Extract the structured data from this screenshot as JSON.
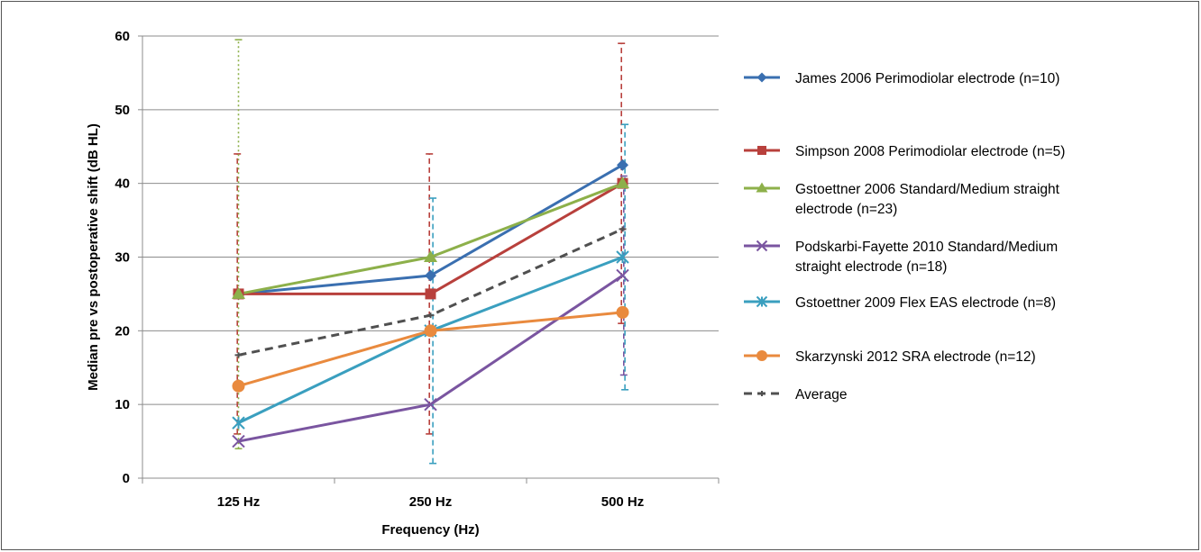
{
  "chart_data": {
    "type": "line",
    "xlabel": "Frequency (Hz)",
    "ylabel": "Median pre vs postoperative shift (dB HL)",
    "categories": [
      "125 Hz",
      "250 Hz",
      "500 Hz"
    ],
    "ylim": [
      0,
      60
    ],
    "yticks": [
      0,
      10,
      20,
      30,
      40,
      50,
      60
    ],
    "grid": true,
    "legend_position": "right",
    "series": [
      {
        "name": " James 2006 Perimodiolar electrode (n=10)",
        "legend_lines": [
          " James 2006 Perimodiolar electrode (n=10)"
        ],
        "values": [
          25,
          27.5,
          42.5
        ],
        "color": "#3a6fb0",
        "marker": "diamond",
        "dash": "solid",
        "error_low": [
          null,
          null,
          null
        ],
        "error_high": [
          null,
          null,
          null
        ]
      },
      {
        "name": "Simpson 2008 Perimodiolar electrode (n=5)",
        "legend_lines": [
          "Simpson 2008 Perimodiolar electrode (n=5)"
        ],
        "values": [
          25,
          25,
          40
        ],
        "color": "#b8403c",
        "marker": "square",
        "dash": "solid",
        "error_low": [
          6,
          6,
          21
        ],
        "error_high": [
          44,
          44,
          59
        ]
      },
      {
        "name": "Gstoettner 2006 Standard/Medium straight electrode (n=23)",
        "legend_lines": [
          "Gstoettner 2006 Standard/Medium straight",
          "electrode (n=23)"
        ],
        "values": [
          25,
          30,
          40
        ],
        "color": "#8db04a",
        "marker": "triangle",
        "dash": "solid",
        "error_low": [
          4,
          null,
          null
        ],
        "error_high": [
          59.5,
          null,
          null
        ]
      },
      {
        "name": "Podskarbi-Fayette 2010 Standard/Medium straight electrode (n=18)",
        "legend_lines": [
          "Podskarbi-Fayette 2010 Standard/Medium",
          "straight electrode (n=18)"
        ],
        "values": [
          5,
          10,
          27.5
        ],
        "color": "#7a55a0",
        "marker": "x",
        "dash": "solid",
        "error_low": [
          null,
          null,
          14
        ],
        "error_high": [
          null,
          null,
          41
        ]
      },
      {
        "name": "Gstoettner 2009 Flex EAS electrode (n=8)",
        "legend_lines": [
          "Gstoettner 2009 Flex EAS electrode (n=8)"
        ],
        "values": [
          7.5,
          20,
          30
        ],
        "color": "#3a9fbf",
        "marker": "asterisk",
        "dash": "solid",
        "error_low": [
          null,
          2,
          12
        ],
        "error_high": [
          46,
          38,
          48
        ]
      },
      {
        "name": "Skarzynski 2012 SRA electrode (n=12)",
        "legend_lines": [
          "Skarzynski 2012 SRA electrode (n=12)"
        ],
        "values": [
          12.5,
          20,
          22.5
        ],
        "color": "#e98a3e",
        "marker": "circle",
        "dash": "solid",
        "error_low": [
          null,
          null,
          null
        ],
        "error_high": [
          null,
          null,
          null
        ]
      },
      {
        "name": "Average",
        "legend_lines": [
          "Average"
        ],
        "values": [
          16.7,
          22.1,
          33.8
        ],
        "color": "#505050",
        "marker": "plus",
        "dash": "dashed",
        "error_low": [
          null,
          null,
          null
        ],
        "error_high": [
          null,
          null,
          null
        ]
      }
    ]
  }
}
